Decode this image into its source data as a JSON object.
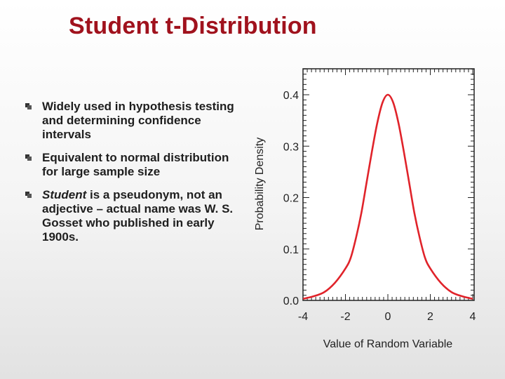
{
  "slide": {
    "title": "Student t-Distribution",
    "bullets": [
      {
        "lead": "",
        "text": "Widely used in hypothesis testing and determining confidence intervals"
      },
      {
        "lead": "",
        "text": "Equivalent to normal distribution for large sample size"
      },
      {
        "lead": "Student",
        "text": " is a pseudonym, not an adjective – actual name was W. S. Gosset who published in early 1900s."
      }
    ]
  },
  "chart_data": {
    "type": "line",
    "xlabel": "Value of Random Variable",
    "ylabel": "Probability Density",
    "xlim": [
      -4,
      4
    ],
    "ylim": [
      0,
      0.42
    ],
    "x_ticks": [
      "-4",
      "-2",
      "0",
      "2",
      "4"
    ],
    "y_ticks": [
      "0.0",
      "0.1",
      "0.2",
      "0.3",
      "0.4"
    ],
    "grid": false,
    "series": [
      {
        "color": "#e0232a",
        "x": [
          -4,
          -3.5,
          -3,
          -2.5,
          -2,
          -1.75,
          -1.5,
          -1.25,
          -1,
          -0.75,
          -0.5,
          -0.25,
          0,
          0.25,
          0.5,
          0.75,
          1,
          1.25,
          1.5,
          1.75,
          2,
          2.5,
          3,
          3.5,
          4
        ],
        "y": [
          0.003,
          0.008,
          0.016,
          0.034,
          0.062,
          0.083,
          0.122,
          0.17,
          0.23,
          0.29,
          0.345,
          0.385,
          0.4,
          0.385,
          0.345,
          0.29,
          0.23,
          0.17,
          0.122,
          0.083,
          0.062,
          0.034,
          0.016,
          0.008,
          0.003
        ]
      }
    ]
  }
}
